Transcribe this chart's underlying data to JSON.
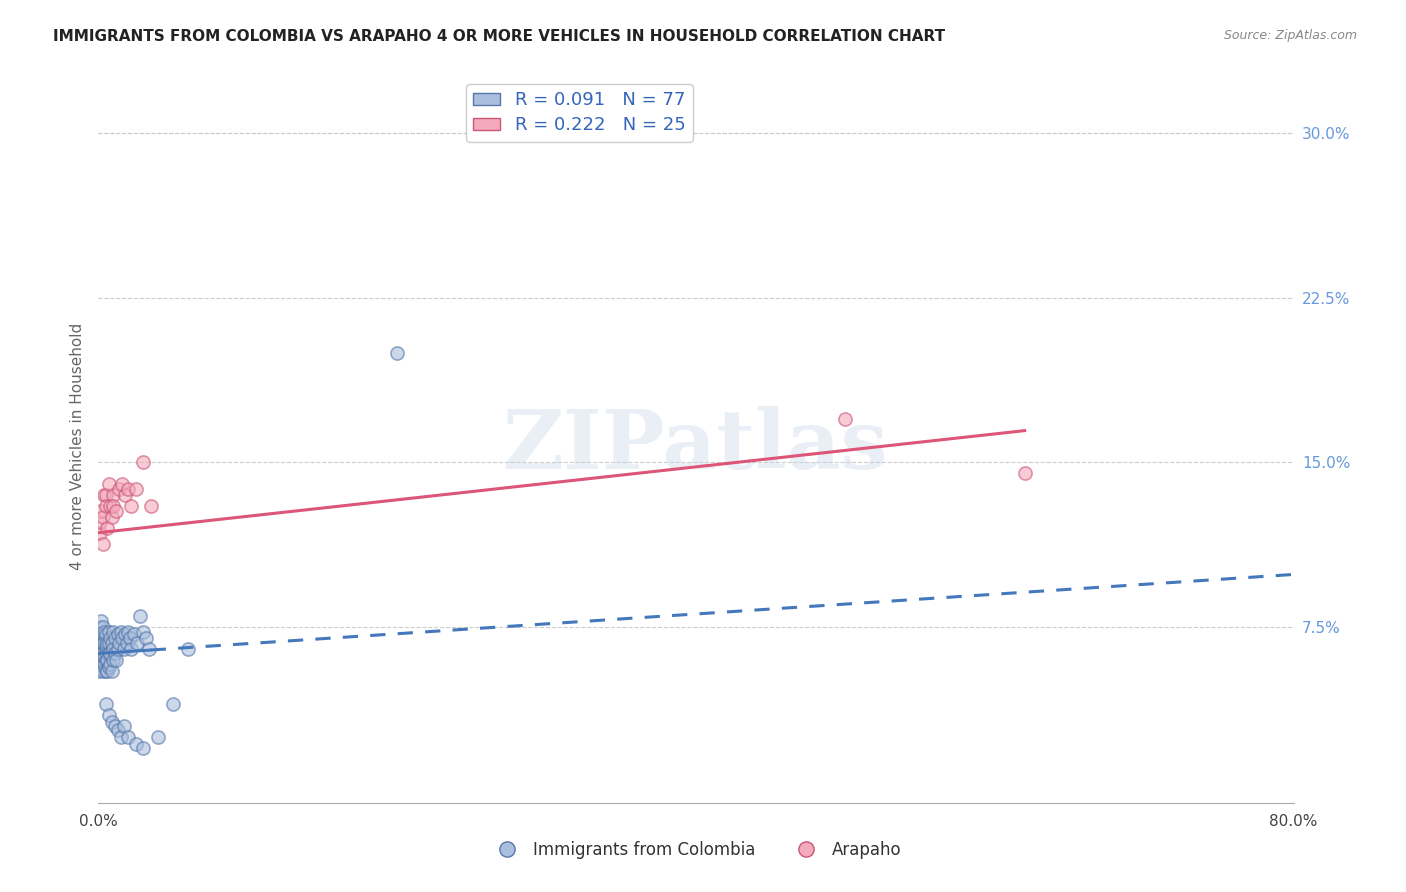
{
  "title": "IMMIGRANTS FROM COLOMBIA VS ARAPAHO 4 OR MORE VEHICLES IN HOUSEHOLD CORRELATION CHART",
  "source": "Source: ZipAtlas.com",
  "ylabel": "4 or more Vehicles in Household",
  "xlim": [
    0.0,
    0.8
  ],
  "ylim": [
    -0.005,
    0.32
  ],
  "xtick_positions": [
    0.0,
    0.1,
    0.2,
    0.3,
    0.4,
    0.5,
    0.6,
    0.7,
    0.8
  ],
  "xticklabels": [
    "0.0%",
    "",
    "",
    "",
    "",
    "",
    "",
    "",
    "80.0%"
  ],
  "yticks_right": [
    0.075,
    0.15,
    0.225,
    0.3
  ],
  "ytick_right_labels": [
    "7.5%",
    "15.0%",
    "22.5%",
    "30.0%"
  ],
  "legend_r1": "R = 0.091",
  "legend_n1": "N = 77",
  "legend_r2": "R = 0.222",
  "legend_n2": "N = 25",
  "legend_label1": "Immigrants from Colombia",
  "legend_label2": "Arapaho",
  "watermark": "ZIPatlas",
  "blue_scatter_x": [
    0.0005,
    0.0005,
    0.001,
    0.001,
    0.001,
    0.001,
    0.001,
    0.0015,
    0.002,
    0.002,
    0.002,
    0.002,
    0.002,
    0.003,
    0.003,
    0.003,
    0.003,
    0.003,
    0.003,
    0.004,
    0.004,
    0.004,
    0.004,
    0.005,
    0.005,
    0.005,
    0.005,
    0.005,
    0.006,
    0.006,
    0.006,
    0.007,
    0.007,
    0.007,
    0.007,
    0.008,
    0.008,
    0.008,
    0.009,
    0.009,
    0.01,
    0.01,
    0.01,
    0.011,
    0.011,
    0.012,
    0.013,
    0.013,
    0.014,
    0.015,
    0.016,
    0.017,
    0.018,
    0.019,
    0.02,
    0.021,
    0.022,
    0.024,
    0.026,
    0.028,
    0.03,
    0.032,
    0.034,
    0.005,
    0.007,
    0.009,
    0.011,
    0.013,
    0.015,
    0.017,
    0.02,
    0.025,
    0.03,
    0.04,
    0.05,
    0.06,
    0.2
  ],
  "blue_scatter_y": [
    0.055,
    0.062,
    0.058,
    0.063,
    0.068,
    0.072,
    0.075,
    0.065,
    0.06,
    0.065,
    0.068,
    0.072,
    0.078,
    0.055,
    0.06,
    0.063,
    0.068,
    0.072,
    0.075,
    0.058,
    0.062,
    0.068,
    0.073,
    0.055,
    0.06,
    0.063,
    0.067,
    0.072,
    0.055,
    0.06,
    0.068,
    0.057,
    0.063,
    0.068,
    0.073,
    0.058,
    0.063,
    0.07,
    0.055,
    0.068,
    0.06,
    0.065,
    0.073,
    0.063,
    0.07,
    0.06,
    0.065,
    0.072,
    0.068,
    0.073,
    0.07,
    0.065,
    0.072,
    0.068,
    0.073,
    0.07,
    0.065,
    0.072,
    0.068,
    0.08,
    0.073,
    0.07,
    0.065,
    0.04,
    0.035,
    0.032,
    0.03,
    0.028,
    0.025,
    0.03,
    0.025,
    0.022,
    0.02,
    0.025,
    0.04,
    0.065,
    0.2
  ],
  "pink_scatter_x": [
    0.001,
    0.001,
    0.002,
    0.003,
    0.003,
    0.004,
    0.005,
    0.005,
    0.006,
    0.007,
    0.008,
    0.009,
    0.01,
    0.01,
    0.012,
    0.014,
    0.016,
    0.018,
    0.02,
    0.022,
    0.025,
    0.03,
    0.035,
    0.5,
    0.62
  ],
  "pink_scatter_y": [
    0.118,
    0.123,
    0.128,
    0.113,
    0.125,
    0.135,
    0.135,
    0.13,
    0.12,
    0.14,
    0.13,
    0.125,
    0.135,
    0.13,
    0.128,
    0.138,
    0.14,
    0.135,
    0.138,
    0.13,
    0.138,
    0.15,
    0.13,
    0.17,
    0.145
  ],
  "blue_trend_x0": 0.0,
  "blue_trend_x_solid_end": 0.035,
  "blue_trend_x_dash_end": 0.8,
  "blue_trend_y_intercept": 0.063,
  "blue_trend_slope": 0.045,
  "pink_trend_x0": 0.0,
  "pink_trend_x1": 0.62,
  "pink_trend_y_intercept": 0.118,
  "pink_trend_slope": 0.075,
  "blue_color": "#AABFDD",
  "pink_color": "#F4AABC",
  "blue_edge_color": "#5577AA",
  "pink_edge_color": "#CC5577",
  "blue_line_color": "#4477BB",
  "pink_line_color": "#DD5577",
  "grid_color": "#CCCCCC",
  "title_color": "#222222",
  "axis_label_color": "#666666",
  "right_tick_color": "#6699DD",
  "legend_text_color": "#3366BB",
  "source_color": "#888888"
}
